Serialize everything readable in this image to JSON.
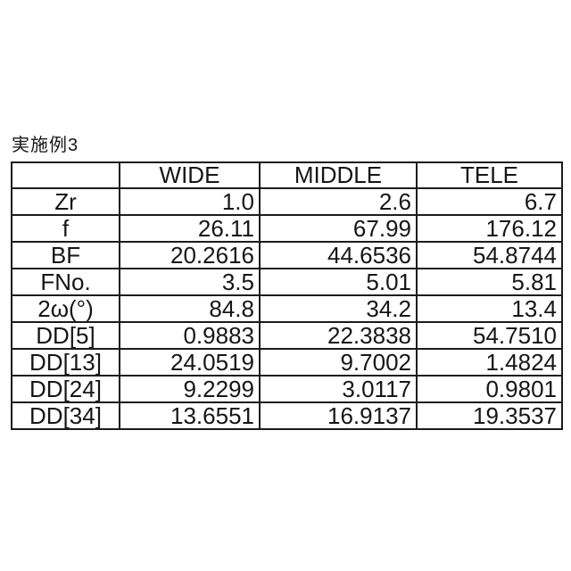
{
  "title": "実施例3",
  "table": {
    "columns": [
      "",
      "WIDE",
      "MIDDLE",
      "TELE"
    ],
    "rows": [
      {
        "label": "Zr",
        "values": [
          "1.0",
          "2.6",
          "6.7"
        ]
      },
      {
        "label": "f",
        "values": [
          "26.11",
          "67.99",
          "176.12"
        ]
      },
      {
        "label": "BF",
        "values": [
          "20.2616",
          "44.6536",
          "54.8744"
        ]
      },
      {
        "label": "FNo.",
        "values": [
          "3.5",
          "5.01",
          "5.81"
        ]
      },
      {
        "label": "2ω(°)",
        "values": [
          "84.8",
          "34.2",
          "13.4"
        ]
      },
      {
        "label": "DD[5]",
        "values": [
          "0.9883",
          "22.3838",
          "54.7510"
        ]
      },
      {
        "label": "DD[13]",
        "values": [
          "24.0519",
          "9.7002",
          "1.4824"
        ]
      },
      {
        "label": "DD[24]",
        "values": [
          "9.2299",
          "3.0117",
          "0.9801"
        ]
      },
      {
        "label": "DD[34]",
        "values": [
          "13.6551",
          "16.9137",
          "19.3537"
        ]
      }
    ]
  }
}
